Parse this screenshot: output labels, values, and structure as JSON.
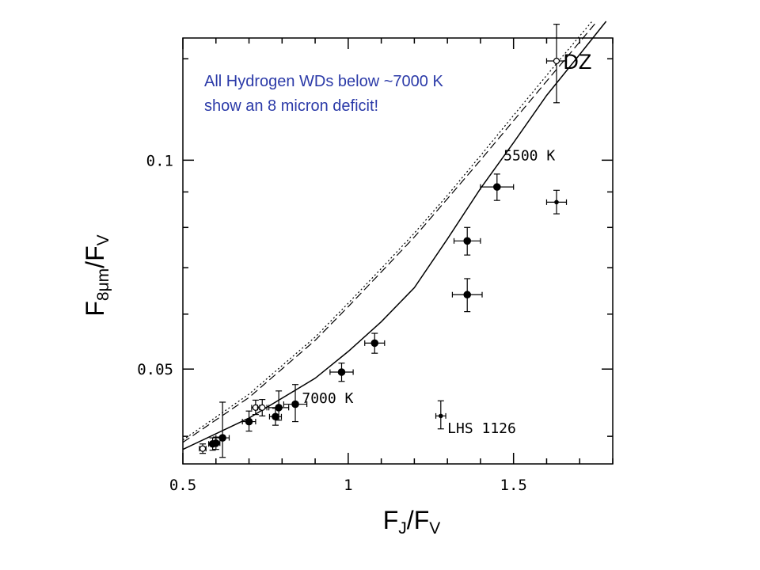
{
  "chart_data": {
    "type": "scatter",
    "x_axis": {
      "range": [
        0.5,
        1.8
      ],
      "major_ticks": [
        0.5,
        1.0,
        1.5
      ],
      "major_tick_labels": [
        "0.5",
        "1",
        "1.5"
      ],
      "minor_step": 0.1,
      "label_main": "F",
      "label_sub": "J",
      "label_sep": "/F",
      "label_sub2": "V"
    },
    "y_axis": {
      "scale": "log",
      "range": [
        0.0365,
        0.15
      ],
      "major_ticks": [
        0.05,
        0.1
      ],
      "major_tick_labels": [
        "0.05",
        "0.1"
      ],
      "minor_ticks": [
        0.04,
        0.06,
        0.07,
        0.08,
        0.09,
        0.14
      ],
      "label_main": "F",
      "label_sub": "8μm",
      "label_sep": "/F",
      "label_sub2": "V"
    },
    "curves": [
      {
        "style": "solid",
        "points": [
          [
            0.5,
            0.0383
          ],
          [
            0.7,
            0.0425
          ],
          [
            0.9,
            0.0485
          ],
          [
            1.0,
            0.053
          ],
          [
            1.1,
            0.0585
          ],
          [
            1.2,
            0.0655
          ],
          [
            1.3,
            0.077
          ],
          [
            1.4,
            0.091
          ],
          [
            1.5,
            0.106
          ],
          [
            1.6,
            0.124
          ],
          [
            1.7,
            0.142
          ],
          [
            1.78,
            0.1585
          ]
        ]
      },
      {
        "style": "dashed",
        "points": [
          [
            0.5,
            0.0392
          ],
          [
            0.7,
            0.0455
          ],
          [
            0.9,
            0.055
          ],
          [
            1.0,
            0.0615
          ],
          [
            1.1,
            0.069
          ],
          [
            1.2,
            0.0775
          ],
          [
            1.3,
            0.088
          ],
          [
            1.4,
            0.1
          ],
          [
            1.5,
            0.114
          ],
          [
            1.6,
            0.13
          ],
          [
            1.7,
            0.148
          ],
          [
            1.75,
            0.158
          ]
        ]
      },
      {
        "style": "dotted",
        "points": [
          [
            0.5,
            0.0395
          ],
          [
            0.7,
            0.046
          ],
          [
            0.9,
            0.0556
          ],
          [
            1.0,
            0.0622
          ],
          [
            1.1,
            0.0698
          ],
          [
            1.2,
            0.0785
          ],
          [
            1.3,
            0.089
          ],
          [
            1.4,
            0.1015
          ],
          [
            1.5,
            0.116
          ],
          [
            1.6,
            0.1325
          ],
          [
            1.7,
            0.151
          ],
          [
            1.74,
            0.159
          ]
        ]
      }
    ],
    "points": [
      {
        "x": 0.56,
        "y": 0.0384,
        "xerr": 0.01,
        "yerr_lo": 0.0006,
        "yerr_hi": 0.0006,
        "marker": "open"
      },
      {
        "x": 0.59,
        "y": 0.039,
        "xerr": 0.012,
        "yerr_lo": 0.0008,
        "yerr_hi": 0.0008,
        "marker": "filled"
      },
      {
        "x": 0.6,
        "y": 0.0391,
        "xerr": 0.012,
        "yerr_lo": 0.0008,
        "yerr_hi": 0.0008,
        "marker": "filled"
      },
      {
        "x": 0.62,
        "y": 0.0398,
        "xerr": 0.02,
        "yerr_lo": 0.0025,
        "yerr_hi": 0.005,
        "marker": "filled"
      },
      {
        "x": 0.7,
        "y": 0.042,
        "xerr": 0.02,
        "yerr_lo": 0.0013,
        "yerr_hi": 0.0015,
        "marker": "filled"
      },
      {
        "x": 0.72,
        "y": 0.044,
        "xerr": 0.012,
        "yerr_lo": 0.001,
        "yerr_hi": 0.0011,
        "marker": "open"
      },
      {
        "x": 0.74,
        "y": 0.044,
        "xerr": 0.014,
        "yerr_lo": 0.0012,
        "yerr_hi": 0.0012,
        "marker": "open"
      },
      {
        "x": 0.78,
        "y": 0.0427,
        "xerr": 0.018,
        "yerr_lo": 0.0012,
        "yerr_hi": 0.0012,
        "marker": "filled"
      },
      {
        "x": 0.79,
        "y": 0.044,
        "xerr": 0.03,
        "yerr_lo": 0.0018,
        "yerr_hi": 0.0025,
        "marker": "filled"
      },
      {
        "x": 0.84,
        "y": 0.0445,
        "xerr": 0.035,
        "yerr_lo": 0.0025,
        "yerr_hi": 0.003,
        "marker": "filled"
      },
      {
        "x": 0.98,
        "y": 0.0495,
        "xerr": 0.035,
        "yerr_lo": 0.0015,
        "yerr_hi": 0.0015,
        "marker": "filled"
      },
      {
        "x": 1.08,
        "y": 0.0545,
        "xerr": 0.03,
        "yerr_lo": 0.0018,
        "yerr_hi": 0.0018,
        "marker": "filled"
      },
      {
        "x": 1.28,
        "y": 0.0428,
        "xerr": 0.015,
        "yerr_lo": 0.0018,
        "yerr_hi": 0.0022,
        "marker": "small"
      },
      {
        "x": 1.36,
        "y": 0.064,
        "xerr": 0.045,
        "yerr_lo": 0.0035,
        "yerr_hi": 0.0035,
        "marker": "filled"
      },
      {
        "x": 1.36,
        "y": 0.0765,
        "xerr": 0.04,
        "yerr_lo": 0.0035,
        "yerr_hi": 0.0035,
        "marker": "filled"
      },
      {
        "x": 1.45,
        "y": 0.0915,
        "xerr": 0.05,
        "yerr_lo": 0.004,
        "yerr_hi": 0.004,
        "marker": "filled"
      },
      {
        "x": 1.63,
        "y": 0.087,
        "xerr": 0.03,
        "yerr_lo": 0.0033,
        "yerr_hi": 0.0035,
        "marker": "small"
      },
      {
        "x": 1.63,
        "y": 0.139,
        "xerr": 0.03,
        "yerr_lo": 0.018,
        "yerr_hi": 0.018,
        "marker": "open"
      }
    ],
    "annotations": [
      {
        "text": "7000 K",
        "x": 0.86,
        "y": 0.0455,
        "style": "mono"
      },
      {
        "text": "5500 K",
        "x": 1.47,
        "y": 0.1018,
        "style": "mono"
      },
      {
        "text": "LHS 1126",
        "x": 1.3,
        "y": 0.0412,
        "style": "mono"
      },
      {
        "text": "DZ",
        "x": 1.65,
        "y": 0.139,
        "style": "large"
      }
    ],
    "note_lines": [
      "All Hydrogen WDs below ~7000 K",
      "show an 8 micron deficit!"
    ],
    "colors": {
      "axis": "#000000",
      "note": "#2b3aa8",
      "background": "#ffffff"
    }
  }
}
